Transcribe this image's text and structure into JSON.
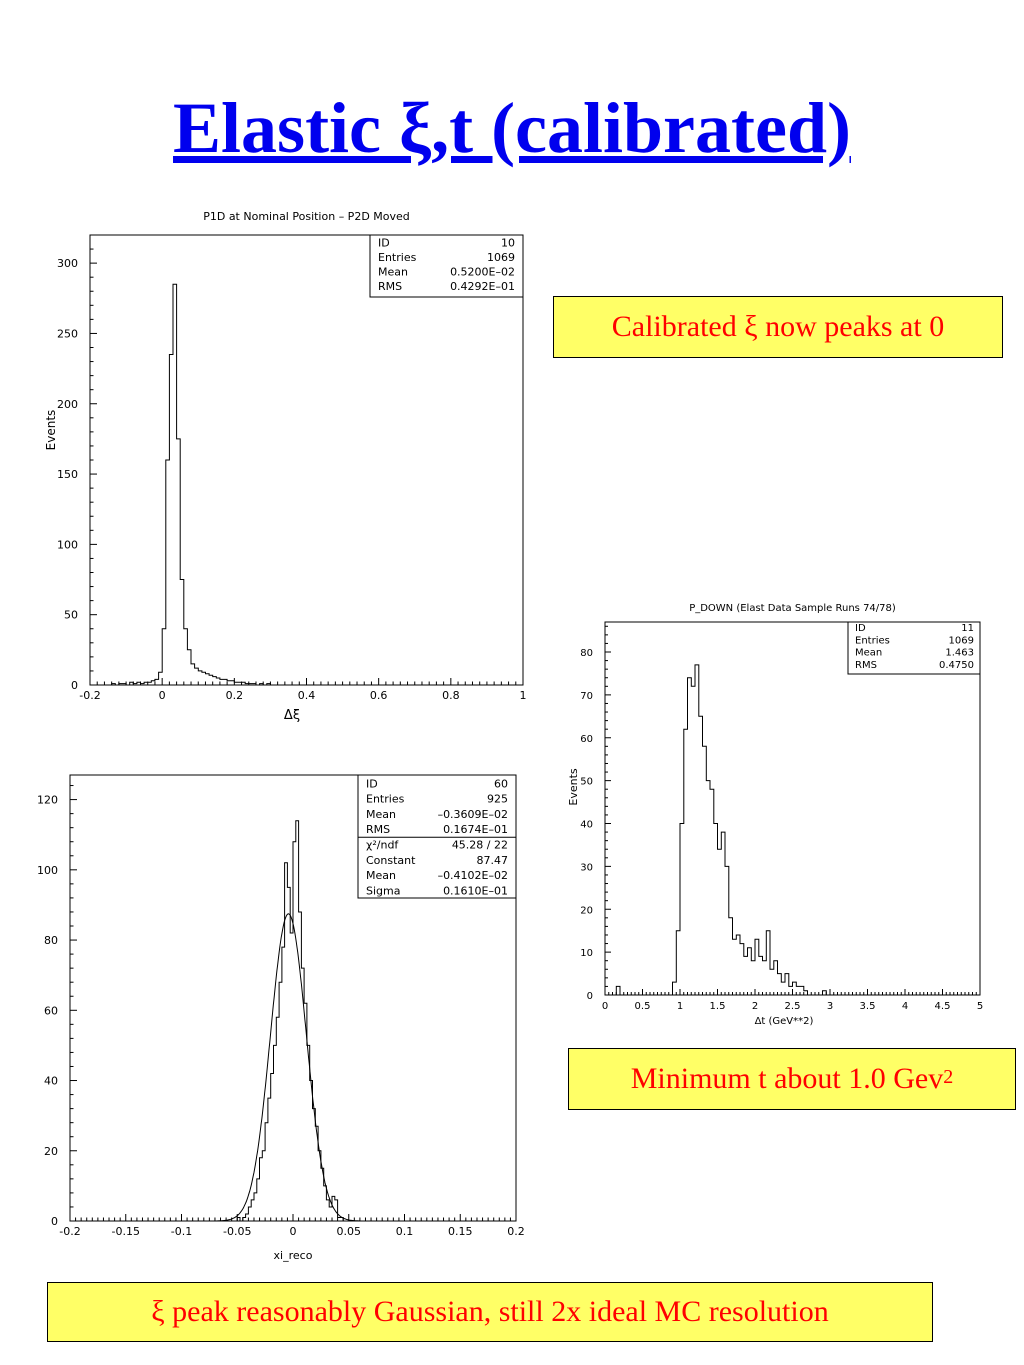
{
  "slide": {
    "title": "Elastic ξ,t (calibrated)",
    "note1": "Calibrated ξ now peaks at 0",
    "note2_text": "Minimum t about 1.0 Gev",
    "note2_sup": "2",
    "note3": "ξ peak reasonably Gaussian, still 2x ideal MC resolution",
    "accent_color": "#0000ee",
    "note_bg": "#ffff66",
    "note_text_color": "#ff0000"
  },
  "chart_data": [
    {
      "type": "histogram",
      "title": "P1D at Nominal Position – P2D Moved",
      "xlabel": "Δξ",
      "ylabel": "Events",
      "xlim": [
        -0.2,
        1.0
      ],
      "ylim": [
        0,
        320
      ],
      "xticks": [
        "-0.2",
        "0",
        "0.2",
        "0.4",
        "0.6",
        "0.8",
        "1"
      ],
      "yticks": [
        "0",
        "50",
        "100",
        "150",
        "200",
        "250",
        "300"
      ],
      "bin_edges_start": -0.2,
      "bin_width": 0.01,
      "values": [
        0,
        0,
        0,
        0,
        0,
        0,
        1,
        0,
        1,
        1,
        0,
        2,
        1,
        2,
        1,
        2,
        2,
        3,
        4,
        9,
        40,
        160,
        235,
        285,
        175,
        75,
        40,
        25,
        15,
        12,
        10,
        9,
        8,
        7,
        6,
        5,
        4,
        4,
        3,
        3,
        2,
        2,
        2,
        1,
        1,
        1,
        0,
        1,
        0,
        1,
        0,
        0,
        0,
        0,
        0,
        0,
        0,
        0,
        0,
        0,
        0,
        0,
        0,
        0,
        0,
        0,
        0,
        0,
        0,
        0,
        0,
        0,
        0,
        0,
        0,
        0,
        0,
        0,
        0,
        0,
        0,
        0,
        0,
        0,
        0,
        0,
        0,
        0,
        0,
        0,
        0,
        0,
        0,
        0,
        0,
        0,
        0,
        0,
        0,
        0,
        0,
        0,
        0,
        0,
        0,
        0,
        0,
        0,
        0,
        0,
        0,
        0,
        0,
        0,
        0,
        0,
        0,
        0,
        0,
        0
      ],
      "stats": [
        {
          "label": "ID",
          "value": "10"
        },
        {
          "label": "Entries",
          "value": "1069"
        },
        {
          "label": "Mean",
          "value": "0.5200E–02"
        },
        {
          "label": "RMS",
          "value": "0.4292E–01"
        }
      ]
    },
    {
      "type": "histogram",
      "title": "P_DOWN (Elast Data Sample Runs 74/78)",
      "xlabel": "Δt (GeV**2)",
      "ylabel": "Events",
      "xlim": [
        0,
        5
      ],
      "ylim": [
        0,
        87
      ],
      "xticks": [
        "0",
        "0.5",
        "1",
        "1.5",
        "2",
        "2.5",
        "3",
        "3.5",
        "4",
        "4.5",
        "5"
      ],
      "yticks": [
        "0",
        "10",
        "20",
        "30",
        "40",
        "50",
        "60",
        "70",
        "80"
      ],
      "bin_edges_start": 0,
      "bin_width": 0.05,
      "values": [
        0,
        0,
        0,
        2,
        0,
        0,
        0,
        0,
        0,
        0,
        0,
        0,
        0,
        0,
        0,
        0,
        0,
        0,
        3,
        15,
        40,
        62,
        74,
        72,
        77,
        65,
        58,
        50,
        48,
        40,
        34,
        38,
        30,
        18,
        13,
        14,
        12,
        9,
        11,
        8,
        13,
        9,
        8,
        15,
        6,
        8,
        5,
        3,
        5,
        2,
        3,
        2,
        2,
        1,
        0,
        0,
        0,
        0,
        1,
        0,
        0,
        0,
        0,
        0,
        0,
        0,
        0,
        0,
        0,
        0,
        0,
        0,
        0,
        0,
        0,
        0,
        0,
        0,
        0,
        0,
        0,
        0,
        0,
        0,
        0,
        0,
        0,
        0,
        0,
        0,
        0,
        0,
        0,
        0,
        0,
        0,
        0,
        0,
        0,
        0
      ],
      "stats": [
        {
          "label": "ID",
          "value": "11"
        },
        {
          "label": "Entries",
          "value": "1069"
        },
        {
          "label": "Mean",
          "value": "1.463"
        },
        {
          "label": "RMS",
          "value": "0.4750"
        }
      ]
    },
    {
      "type": "histogram",
      "title": "",
      "xlabel": "xi_reco",
      "ylabel": "",
      "xlim": [
        -0.2,
        0.2
      ],
      "ylim": [
        0,
        127
      ],
      "xticks": [
        "-0.2",
        "-0.15",
        "-0.1",
        "-0.05",
        "0",
        "0.05",
        "0.1",
        "0.15",
        "0.2"
      ],
      "yticks": [
        "0",
        "20",
        "40",
        "60",
        "80",
        "100",
        "120"
      ],
      "bin_edges_start": -0.2,
      "bin_width": 0.0025,
      "values": [
        0,
        0,
        0,
        0,
        0,
        0,
        0,
        0,
        0,
        0,
        0,
        0,
        0,
        0,
        0,
        0,
        0,
        0,
        0,
        0,
        0,
        0,
        0,
        0,
        0,
        0,
        0,
        0,
        0,
        0,
        0,
        0,
        0,
        0,
        0,
        0,
        0,
        0,
        0,
        0,
        0,
        0,
        0,
        0,
        0,
        0,
        0,
        0,
        0,
        0,
        0,
        0,
        0,
        0,
        0,
        0,
        0,
        0,
        0,
        0,
        1,
        0,
        1,
        2,
        4,
        6,
        8,
        12,
        18,
        20,
        28,
        35,
        42,
        50,
        58,
        68,
        78,
        102,
        95,
        82,
        108,
        114,
        88,
        72,
        62,
        50,
        40,
        32,
        27,
        20,
        15,
        10,
        6,
        4,
        7,
        6,
        1,
        1,
        0,
        0,
        0,
        0,
        0,
        0,
        0,
        0,
        0,
        0,
        0,
        0,
        0,
        0,
        0,
        0,
        0,
        0,
        0,
        0,
        0,
        0,
        0,
        0,
        0,
        0,
        0,
        0,
        0,
        0,
        0,
        0,
        0,
        0,
        0,
        0,
        0,
        0,
        0,
        0,
        0,
        0,
        0,
        0,
        0,
        0,
        0,
        0,
        0,
        0,
        0,
        0,
        0,
        0,
        0,
        0,
        0,
        0,
        0,
        0,
        0,
        0
      ],
      "fit": {
        "type": "gaussian",
        "constant": 87.47,
        "mean": -0.0041,
        "sigma": 0.0161
      },
      "stats": [
        {
          "label": "ID",
          "value": "60"
        },
        {
          "label": "Entries",
          "value": "925"
        },
        {
          "label": "Mean",
          "value": "–0.3609E–02"
        },
        {
          "label": "RMS",
          "value": "0.1674E–01"
        },
        {
          "label": "χ²/ndf",
          "value": "45.28  /  22"
        },
        {
          "label": "Constant",
          "value": "87.47"
        },
        {
          "label": "Mean",
          "value": "–0.4102E–02"
        },
        {
          "label": "Sigma",
          "value": "0.1610E–01"
        }
      ]
    }
  ]
}
